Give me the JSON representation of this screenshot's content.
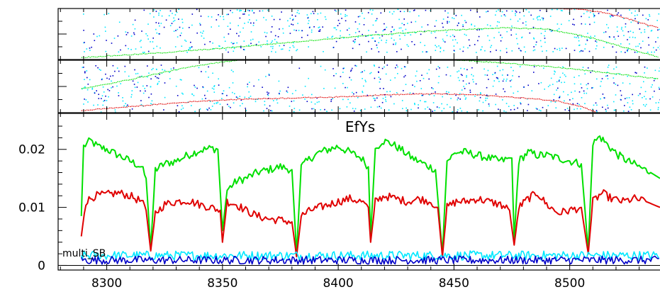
{
  "chart_data": {
    "type": "line",
    "title": "EfYs",
    "annotation": "multi_SB",
    "xlabel": "",
    "ylabel": "",
    "x_range": [
      8279,
      8539
    ],
    "y_range": [
      -0.0008,
      0.0262
    ],
    "x_ticks": [
      8300,
      8350,
      8400,
      8450,
      8500
    ],
    "x_tick_labels": [
      "8300",
      "8350",
      "8400",
      "8450",
      "8500"
    ],
    "y_ticks": [
      0,
      0.01,
      0.02
    ],
    "y_tick_labels": [
      "0",
      "0.01",
      "0.02"
    ],
    "x_start": 8289,
    "x_end": 8539,
    "series": [
      {
        "color": "#00e000",
        "segments": [
          {
            "x": [
              8289,
              8290,
              8293,
              8296,
              8300,
              8305,
              8310,
              8315,
              8317,
              8319
            ],
            "y": [
              0.0085,
              0.0205,
              0.0215,
              0.0205,
              0.02,
              0.019,
              0.018,
              0.017,
              0.015,
              0.003
            ]
          },
          {
            "x": [
              8319,
              8321,
              8325,
              8330,
              8335,
              8340,
              8345,
              8348,
              8350
            ],
            "y": [
              0.003,
              0.0165,
              0.0175,
              0.018,
              0.019,
              0.0198,
              0.0202,
              0.02,
              0.006
            ]
          },
          {
            "x": [
              8350,
              8352,
              8356,
              8360,
              8365,
              8370,
              8375,
              8380,
              8382
            ],
            "y": [
              0.006,
              0.013,
              0.0145,
              0.015,
              0.016,
              0.0165,
              0.017,
              0.0165,
              0.002
            ]
          },
          {
            "x": [
              8382,
              8384,
              8388,
              8392,
              8396,
              8400,
              8405,
              8410,
              8413,
              8414
            ],
            "y": [
              0.002,
              0.017,
              0.0185,
              0.0195,
              0.02,
              0.0205,
              0.0195,
              0.0185,
              0.017,
              0.005
            ]
          },
          {
            "x": [
              8414,
              8416,
              8419,
              8423,
              8427,
              8432,
              8437,
              8442,
              8445
            ],
            "y": [
              0.005,
              0.02,
              0.0215,
              0.021,
              0.02,
              0.0185,
              0.0175,
              0.0165,
              0.002
            ]
          },
          {
            "x": [
              8445,
              8447,
              8451,
              8455,
              8460,
              8465,
              8470,
              8475,
              8476
            ],
            "y": [
              0.002,
              0.018,
              0.0195,
              0.0195,
              0.019,
              0.0185,
              0.018,
              0.0185,
              0.0045
            ]
          },
          {
            "x": [
              8476,
              8478,
              8482,
              8486,
              8490,
              8495,
              8500,
              8505,
              8508
            ],
            "y": [
              0.0045,
              0.018,
              0.0195,
              0.019,
              0.019,
              0.0185,
              0.018,
              0.0175,
              0.0025
            ]
          },
          {
            "x": [
              8508,
              8510,
              8513,
              8517,
              8521,
              8525,
              8530,
              8535,
              8539
            ],
            "y": [
              0.0025,
              0.021,
              0.0222,
              0.0205,
              0.019,
              0.018,
              0.017,
              0.016,
              0.015
            ]
          }
        ]
      },
      {
        "color": "#e00000",
        "segments": [
          {
            "x": [
              8289,
              8291,
              8295,
              8300,
              8305,
              8310,
              8315,
              8317,
              8319
            ],
            "y": [
              0.005,
              0.011,
              0.012,
              0.0122,
              0.0125,
              0.012,
              0.011,
              0.0095,
              0.0025
            ]
          },
          {
            "x": [
              8319,
              8321,
              8325,
              8330,
              8335,
              8340,
              8345,
              8349,
              8350
            ],
            "y": [
              0.0025,
              0.009,
              0.0105,
              0.011,
              0.0112,
              0.0105,
              0.01,
              0.0095,
              0.004
            ]
          },
          {
            "x": [
              8350,
              8352,
              8356,
              8360,
              8365,
              8370,
              8375,
              8380,
              8382
            ],
            "y": [
              0.004,
              0.011,
              0.0105,
              0.0095,
              0.0085,
              0.008,
              0.0078,
              0.0075,
              0.0015
            ]
          },
          {
            "x": [
              8382,
              8384,
              8388,
              8392,
              8396,
              8400,
              8405,
              8410,
              8413,
              8414
            ],
            "y": [
              0.0015,
              0.0085,
              0.0095,
              0.01,
              0.0105,
              0.011,
              0.0115,
              0.011,
              0.01,
              0.004
            ]
          },
          {
            "x": [
              8414,
              8416,
              8420,
              8425,
              8430,
              8435,
              8440,
              8443,
              8445
            ],
            "y": [
              0.004,
              0.011,
              0.012,
              0.0115,
              0.011,
              0.0115,
              0.011,
              0.01,
              0.0015
            ]
          },
          {
            "x": [
              8445,
              8447,
              8451,
              8455,
              8460,
              8465,
              8470,
              8474,
              8476
            ],
            "y": [
              0.0015,
              0.01,
              0.011,
              0.011,
              0.0115,
              0.011,
              0.0105,
              0.0095,
              0.0035
            ]
          },
          {
            "x": [
              8476,
              8478,
              8482,
              8486,
              8490,
              8495,
              8500,
              8505,
              8508
            ],
            "y": [
              0.0035,
              0.01,
              0.0115,
              0.0125,
              0.0105,
              0.009,
              0.0095,
              0.01,
              0.002
            ]
          },
          {
            "x": [
              8508,
              8510,
              8514,
              8518,
              8523,
              8528,
              8533,
              8539
            ],
            "y": [
              0.002,
              0.011,
              0.0125,
              0.0115,
              0.011,
              0.0115,
              0.011,
              0.01
            ]
          }
        ]
      },
      {
        "color": "#00e8ff",
        "noisy": true,
        "mean": 0.0017,
        "amplitude": 0.0008,
        "x": [
          8289,
          8539
        ]
      },
      {
        "color": "#0000c8",
        "noisy": true,
        "mean": 0.0009,
        "amplitude": 0.0007,
        "x": [
          8289,
          8539
        ]
      }
    ],
    "upper_panels": [
      {
        "curves": [
          {
            "color": "#00e000",
            "x": [
              8289,
              8320,
              8350,
              8380,
              8410,
              8440,
              8470,
              8490,
              8510,
              8525,
              8539
            ],
            "y": [
              0.04,
              0.12,
              0.22,
              0.34,
              0.46,
              0.56,
              0.62,
              0.6,
              0.42,
              0.22,
              0.04
            ]
          },
          {
            "color": "#e00000",
            "x": [
              8496,
              8505,
              8515,
              8525,
              8535,
              8539
            ],
            "y": [
              1.0,
              0.98,
              0.92,
              0.8,
              0.66,
              0.62
            ]
          }
        ],
        "scatter_colors": [
          "#00e8ff",
          "#0000c8"
        ]
      },
      {
        "curves": [
          {
            "color": "#00e000",
            "x": [
              8289,
              8300,
              8315,
              8330,
              8345,
              8360,
              8380,
              8400,
              8420,
              8440,
              8460,
              8480,
              8500,
              8520,
              8539
            ],
            "y": [
              0.46,
              0.54,
              0.68,
              0.82,
              0.94,
              1.02,
              1.08,
              1.1,
              1.08,
              1.04,
              0.98,
              0.92,
              0.84,
              0.74,
              0.64
            ]
          },
          {
            "color": "#e00000",
            "x": [
              8289,
              8300,
              8320,
              8340,
              8360,
              8380,
              8400,
              8420,
              8440,
              8460,
              8480,
              8495,
              8505,
              8512
            ],
            "y": [
              0.04,
              0.08,
              0.15,
              0.22,
              0.26,
              0.28,
              0.3,
              0.34,
              0.36,
              0.34,
              0.28,
              0.22,
              0.12,
              0.0
            ]
          }
        ],
        "scatter_colors": [
          "#00e8ff",
          "#0000c8"
        ]
      }
    ]
  }
}
